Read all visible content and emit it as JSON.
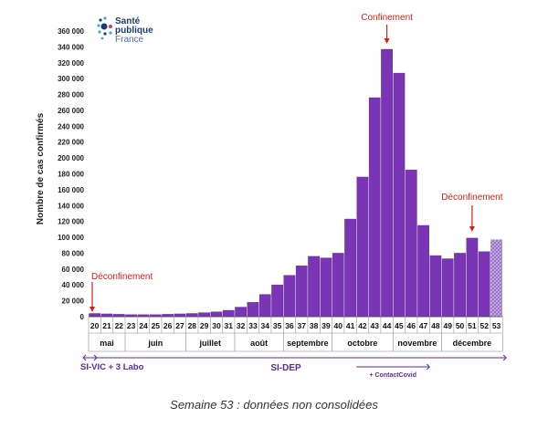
{
  "logo": {
    "line1": "Santé",
    "line2": "publique",
    "line3": "France"
  },
  "caption": "Semaine 53 : données non consolidées",
  "colors": {
    "bar": "#7a35b5",
    "bar_edge": "#5a1f8c",
    "annotation": "#d3201a",
    "axis": "#888888",
    "hatch": "#b89bd6"
  },
  "chart_data": {
    "type": "bar",
    "ylabel": "Nombre de cas confirmés",
    "ylim": [
      0,
      360000
    ],
    "yticks": [
      "0",
      "20 000",
      "40 000",
      "60 000",
      "80 000",
      "100 000",
      "120 000",
      "140 000",
      "160 000",
      "180 000",
      "200 000",
      "220 000",
      "240 000",
      "260 000",
      "280 000",
      "300 000",
      "320 000",
      "340 000",
      "360 000"
    ],
    "categories": [
      "20",
      "21",
      "22",
      "23",
      "24",
      "25",
      "26",
      "27",
      "28",
      "29",
      "30",
      "31",
      "32",
      "33",
      "34",
      "35",
      "36",
      "37",
      "38",
      "39",
      "40",
      "41",
      "42",
      "43",
      "44",
      "45",
      "46",
      "47",
      "48",
      "49",
      "50",
      "51",
      "52",
      "53"
    ],
    "values": [
      4000,
      3500,
      3000,
      2500,
      2500,
      2500,
      3000,
      3500,
      4000,
      5000,
      6000,
      8000,
      12000,
      18000,
      28000,
      40000,
      52000,
      64000,
      76000,
      74000,
      80000,
      123000,
      176000,
      276000,
      337000,
      307000,
      185000,
      115000,
      77000,
      73000,
      80000,
      99000,
      82000,
      97000
    ],
    "non_consolidated": [
      "53"
    ],
    "months": [
      {
        "label": "mai",
        "start": "20",
        "end": "22"
      },
      {
        "label": "juin",
        "start": "23",
        "end": "27"
      },
      {
        "label": "juillet",
        "start": "28",
        "end": "31"
      },
      {
        "label": "août",
        "start": "32",
        "end": "35"
      },
      {
        "label": "septembre",
        "start": "36",
        "end": "39"
      },
      {
        "label": "octobre",
        "start": "40",
        "end": "44"
      },
      {
        "label": "novembre",
        "start": "45",
        "end": "48"
      },
      {
        "label": "décembre",
        "start": "49",
        "end": "53"
      }
    ],
    "annotations": [
      {
        "label": "Confinement",
        "week": "44"
      },
      {
        "label": "Déconfinement",
        "week": "51"
      },
      {
        "label": "Déconfinement",
        "week": "20"
      }
    ],
    "sources": [
      {
        "label": "SI-VIC + 3 Labo",
        "start": "20",
        "end": "20"
      },
      {
        "label": "SI-DEP",
        "start": "20",
        "end": "53"
      },
      {
        "label": "+ ContactCovid",
        "start": "42",
        "end": "47"
      }
    ]
  }
}
